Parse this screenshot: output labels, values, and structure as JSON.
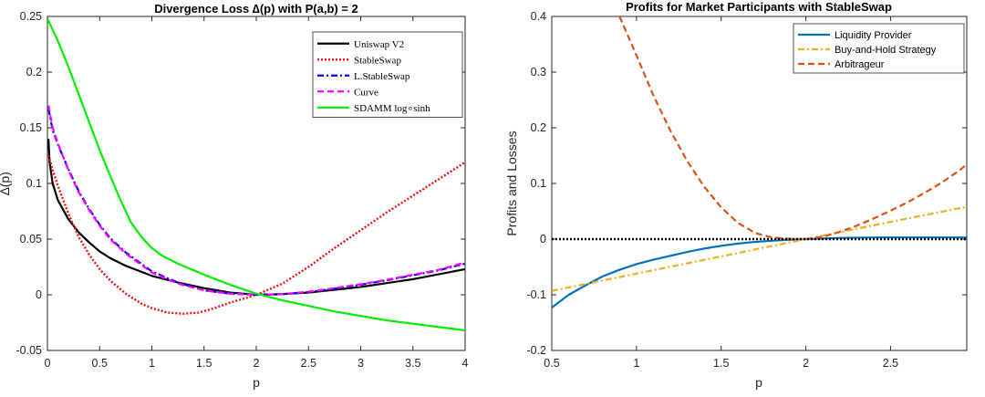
{
  "chart_data": [
    {
      "type": "line",
      "title": "Divergence Loss ∆(p) with P(a,b) = 2",
      "xlabel": "p",
      "ylabel": "∆(p)",
      "xlim": [
        0,
        4
      ],
      "ylim": [
        -0.05,
        0.25
      ],
      "xticks": [
        0,
        0.5,
        1,
        1.5,
        2,
        2.5,
        3,
        3.5,
        4
      ],
      "xtick_labels": [
        "0",
        "0.5",
        "1",
        "1.5",
        "2",
        "2.5",
        "3",
        "3.5",
        "4"
      ],
      "yticks": [
        -0.05,
        0,
        0.05,
        0.1,
        0.15,
        0.2,
        0.25
      ],
      "ytick_labels": [
        "-0.05",
        "0",
        "0.05",
        "0.1",
        "0.15",
        "0.2",
        "0.25"
      ],
      "grid": false,
      "legend_position": "top-right",
      "legend_font": "serif",
      "series": [
        {
          "name": "Uniswap V2",
          "color": "#000000",
          "dash": "solid",
          "points": [
            [
              0.01,
              0.14
            ],
            [
              0.02,
              0.12
            ],
            [
              0.05,
              0.1
            ],
            [
              0.1,
              0.085
            ],
            [
              0.2,
              0.068
            ],
            [
              0.3,
              0.056
            ],
            [
              0.4,
              0.047
            ],
            [
              0.5,
              0.039
            ],
            [
              0.6,
              0.033
            ],
            [
              0.75,
              0.026
            ],
            [
              1,
              0.017
            ],
            [
              1.25,
              0.011
            ],
            [
              1.5,
              0.006
            ],
            [
              1.75,
              0.002
            ],
            [
              2,
              0
            ],
            [
              2.25,
              0.0006
            ],
            [
              2.5,
              0.002
            ],
            [
              2.75,
              0.0045
            ],
            [
              3,
              0.007
            ],
            [
              3.25,
              0.0105
            ],
            [
              3.5,
              0.014
            ],
            [
              3.75,
              0.0185
            ],
            [
              4,
              0.023
            ]
          ]
        },
        {
          "name": "StableSwap",
          "color": "#ee1111",
          "dash": "dot",
          "points": [
            [
              0.01,
              0.125
            ],
            [
              0.05,
              0.112
            ],
            [
              0.1,
              0.098
            ],
            [
              0.2,
              0.073
            ],
            [
              0.3,
              0.052
            ],
            [
              0.4,
              0.036
            ],
            [
              0.5,
              0.023
            ],
            [
              0.6,
              0.013
            ],
            [
              0.75,
              0.001
            ],
            [
              0.9,
              -0.008
            ],
            [
              1,
              -0.012
            ],
            [
              1.15,
              -0.016
            ],
            [
              1.3,
              -0.017
            ],
            [
              1.45,
              -0.016
            ],
            [
              1.6,
              -0.012
            ],
            [
              1.75,
              -0.007
            ],
            [
              1.9,
              -0.003
            ],
            [
              2,
              0
            ],
            [
              2.25,
              0.01
            ],
            [
              2.5,
              0.025
            ],
            [
              2.75,
              0.042
            ],
            [
              3,
              0.058
            ],
            [
              3.25,
              0.074
            ],
            [
              3.5,
              0.089
            ],
            [
              3.75,
              0.104
            ],
            [
              4,
              0.119
            ]
          ]
        },
        {
          "name": "L.StableSwap",
          "color": "#0000ff",
          "dash": "dashdot",
          "points": [
            [
              0.01,
              0.167
            ],
            [
              0.05,
              0.148
            ],
            [
              0.1,
              0.135
            ],
            [
              0.2,
              0.113
            ],
            [
              0.3,
              0.093
            ],
            [
              0.4,
              0.077
            ],
            [
              0.5,
              0.063
            ],
            [
              0.6,
              0.051
            ],
            [
              0.75,
              0.038
            ],
            [
              1,
              0.021
            ],
            [
              1.25,
              0.011
            ],
            [
              1.5,
              0.004
            ],
            [
              1.75,
              0.001
            ],
            [
              2,
              0
            ],
            [
              2.25,
              0.0005
            ],
            [
              2.5,
              0.0025
            ],
            [
              2.75,
              0.0055
            ],
            [
              3,
              0.009
            ],
            [
              3.25,
              0.013
            ],
            [
              3.5,
              0.0175
            ],
            [
              3.75,
              0.022
            ],
            [
              4,
              0.028
            ]
          ]
        },
        {
          "name": "Curve",
          "color": "#ff00ff",
          "dash": "dash",
          "points": [
            [
              0.01,
              0.17
            ],
            [
              0.05,
              0.15
            ],
            [
              0.1,
              0.136
            ],
            [
              0.2,
              0.112
            ],
            [
              0.3,
              0.092
            ],
            [
              0.4,
              0.076
            ],
            [
              0.5,
              0.062
            ],
            [
              0.6,
              0.05
            ],
            [
              0.75,
              0.037
            ],
            [
              1,
              0.02
            ],
            [
              1.25,
              0.01
            ],
            [
              1.5,
              0.004
            ],
            [
              1.75,
              0.001
            ],
            [
              2,
              0
            ],
            [
              2.25,
              0.0006
            ],
            [
              2.5,
              0.0028
            ],
            [
              2.75,
              0.006
            ],
            [
              3,
              0.0095
            ],
            [
              3.25,
              0.0135
            ],
            [
              3.5,
              0.018
            ],
            [
              3.75,
              0.0225
            ],
            [
              4,
              0.029
            ]
          ]
        },
        {
          "name": "SDAMM log∘sinh",
          "color": "#00ee00",
          "dash": "solid",
          "points": [
            [
              0,
              0.248
            ],
            [
              0.1,
              0.228
            ],
            [
              0.2,
              0.205
            ],
            [
              0.3,
              0.18
            ],
            [
              0.4,
              0.155
            ],
            [
              0.5,
              0.13
            ],
            [
              0.6,
              0.107
            ],
            [
              0.7,
              0.085
            ],
            [
              0.8,
              0.065
            ],
            [
              0.9,
              0.052
            ],
            [
              1,
              0.042
            ],
            [
              1.1,
              0.035
            ],
            [
              1.25,
              0.028
            ],
            [
              1.5,
              0.018
            ],
            [
              1.75,
              0.009
            ],
            [
              2,
              0.001
            ],
            [
              2.25,
              -0.005
            ],
            [
              2.5,
              -0.01
            ],
            [
              2.75,
              -0.015
            ],
            [
              3,
              -0.019
            ],
            [
              3.25,
              -0.023
            ],
            [
              3.5,
              -0.026
            ],
            [
              3.75,
              -0.029
            ],
            [
              4,
              -0.032
            ]
          ]
        }
      ]
    },
    {
      "type": "line",
      "title": "Profits for Market Participants with StableSwap",
      "xlabel": "p",
      "ylabel": "Profits and Losses",
      "xlim": [
        0.5,
        2.95
      ],
      "ylim": [
        -0.2,
        0.4
      ],
      "xticks": [
        0.5,
        1,
        1.5,
        2,
        2.5
      ],
      "xtick_labels": [
        "0.5",
        "1",
        "1.5",
        "2",
        "2.5"
      ],
      "yticks": [
        -0.2,
        -0.1,
        0,
        0.1,
        0.2,
        0.3,
        0.4
      ],
      "ytick_labels": [
        "-0.2",
        "-0.1",
        "0",
        "0.1",
        "0.2",
        "0.3",
        "0.4"
      ],
      "grid": false,
      "legend_position": "top-right",
      "legend_font": "sans",
      "series": [
        {
          "name": "Liquidity Provider",
          "color": "#0072bd",
          "dash": "solid",
          "points": [
            [
              0.5,
              -0.123
            ],
            [
              0.6,
              -0.1
            ],
            [
              0.7,
              -0.083
            ],
            [
              0.8,
              -0.067
            ],
            [
              0.9,
              -0.055
            ],
            [
              1,
              -0.045
            ],
            [
              1.1,
              -0.037
            ],
            [
              1.2,
              -0.03
            ],
            [
              1.3,
              -0.023
            ],
            [
              1.4,
              -0.017
            ],
            [
              1.5,
              -0.012
            ],
            [
              1.6,
              -0.008
            ],
            [
              1.7,
              -0.005
            ],
            [
              1.8,
              -0.003
            ],
            [
              1.9,
              -0.001
            ],
            [
              2,
              0
            ],
            [
              2.2,
              0.002
            ],
            [
              2.4,
              0.003
            ],
            [
              2.6,
              0.003
            ],
            [
              2.8,
              0.003
            ],
            [
              2.95,
              0.003
            ]
          ]
        },
        {
          "name": "Buy-and-Hold Strategy",
          "color": "#edb120",
          "dash": "dashdot",
          "points": [
            [
              0.5,
              -0.093
            ],
            [
              1,
              -0.062
            ],
            [
              1.5,
              -0.031
            ],
            [
              2,
              0
            ],
            [
              2.5,
              0.031
            ],
            [
              2.95,
              0.058
            ]
          ]
        },
        {
          "name": "Arbitrageur",
          "color": "#d95319",
          "dash": "dash",
          "points": [
            [
              0.9,
              0.4
            ],
            [
              1,
              0.33
            ],
            [
              1.1,
              0.258
            ],
            [
              1.2,
              0.195
            ],
            [
              1.3,
              0.14
            ],
            [
              1.4,
              0.094
            ],
            [
              1.5,
              0.057
            ],
            [
              1.6,
              0.029
            ],
            [
              1.7,
              0.011
            ],
            [
              1.8,
              0.003
            ],
            [
              1.9,
              0.0005
            ],
            [
              2,
              0
            ],
            [
              2.1,
              0.004
            ],
            [
              2.2,
              0.013
            ],
            [
              2.3,
              0.024
            ],
            [
              2.4,
              0.037
            ],
            [
              2.5,
              0.051
            ],
            [
              2.6,
              0.066
            ],
            [
              2.7,
              0.083
            ],
            [
              2.8,
              0.101
            ],
            [
              2.9,
              0.122
            ],
            [
              2.95,
              0.134
            ]
          ]
        },
        {
          "name": "",
          "color": "#000000",
          "dash": "dot",
          "legend": false,
          "points": [
            [
              0.5,
              0
            ],
            [
              2.95,
              0
            ]
          ]
        }
      ]
    }
  ]
}
